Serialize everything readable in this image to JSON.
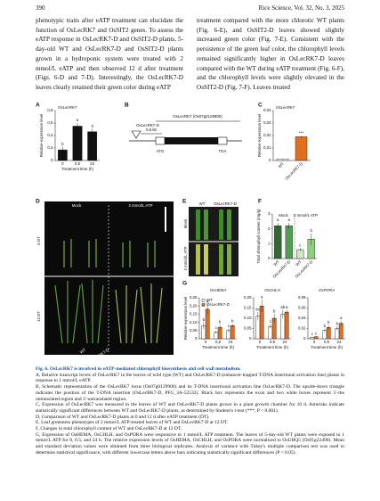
{
  "header": {
    "page": "390",
    "journal": "Rice Science, Vol. 32, No. 3, 2025"
  },
  "body": {
    "left": "phenotypic traits after eATP treatment can elucidate the function of OsLecRK7 and OsSIT2 genes. To assess the eATP response in OsLecRK7-D and OsSIT2-D plants, 5-day-old WT and OsLecRK7-D and OsSIT2-D plants grown in a hydroponic system were treated with 2 mmol/L eATP and then observed 12 d after treatment (Figs. 6-D and 7-D). Interestingly, the OsLecRK7-D leaves clearly retained their green color during eATP",
    "right": "treatment compared with the more chlorotic WT plants (Fig. 6-E), and OsSIT2-D leaves showed slightly increased green color (Fig. 7-E). Consistent with the persistence of the green leaf color, the chlorophyll levels remained significantly higher in OsLecRK7-D leaves compared with the WT during eATP treatment (Fig. 6-F), and the chlorophyll levels were slightly elevated in the OsSIT2-D (Fig. 7-F). Leaves treated"
  },
  "figure": {
    "a": {
      "label": "A",
      "type": "bar",
      "title": "OsLecRK7",
      "ylabel": "Relative expression level",
      "xlabel": "Treatment time (h)",
      "categories": [
        "0",
        "0,5",
        "24"
      ],
      "ylim": [
        0,
        0.8
      ],
      "yticks": [
        0,
        {
          "value": 0.2,
          "label": "0,2"
        },
        {
          "value": 0.4,
          "label": "0,4"
        },
        {
          "value": 0.6,
          "label": "0,6"
        },
        {
          "value": 0.8,
          "label": "0,8"
        }
      ],
      "series": [
        {
          "color": "#111111",
          "values": [
            0.17,
            0.55,
            0.46
          ],
          "errors": [
            0.05,
            0.05,
            0.05
          ],
          "letters": [
            "b",
            "a",
            "a"
          ]
        }
      ]
    },
    "b": {
      "label": "B",
      "gene": "OsLecRK7 (Os07g0129900)",
      "line": "OsLecRK7-D",
      "distance": "0,6 kb",
      "start": "ATG",
      "stop": "TGA"
    },
    "c": {
      "label": "C",
      "type": "bar",
      "title": "OsLecRK7",
      "ylabel": "Relative expression level",
      "categories": [
        "WT",
        "OsLecRK7-D"
      ],
      "ylim": [
        0,
        0.04
      ],
      "yticks": [
        0,
        {
          "value": 0.01,
          "label": "0,01"
        },
        {
          "value": 0.02,
          "label": "0,02"
        },
        {
          "value": 0.03,
          "label": "0,03"
        },
        {
          "value": 0.04,
          "label": "0,04"
        }
      ],
      "series": [
        {
          "colors": [
            "#ffffff",
            "#e07020"
          ],
          "values": [
            0.0012,
            0.019
          ],
          "errors": [
            0.0003,
            0.0007
          ]
        }
      ],
      "annotation": "***"
    },
    "d": {
      "label": "D",
      "conditions": [
        "Mock",
        "2 mmol/L ATP"
      ],
      "times": [
        "0 DT",
        "12 DT"
      ],
      "genotypes": [
        "WT",
        "OsLecRK7-D"
      ]
    },
    "e": {
      "label": "E",
      "genotypes": [
        "WT",
        "OsLecRK7-D"
      ],
      "conditions": [
        "Mock",
        "2 mmol/L ATP"
      ]
    },
    "f": {
      "label": "F",
      "type": "bar",
      "ylabel": "Total chlorophyll content (mg/g)",
      "groups": [
        "Mock",
        "2 mmol/L ATP"
      ],
      "categories": [
        "WT",
        "OsLecRK7-D",
        "WT",
        "OsLecRK7-D"
      ],
      "ylim": [
        0,
        3
      ],
      "yticks": [
        0,
        1,
        2,
        3
      ],
      "series": [
        {
          "colors": [
            "#2e6b2e",
            "#4fa04f",
            "#cfe8c0",
            "#8fd07f"
          ],
          "values": [
            2.2,
            2.2,
            0.6,
            1.3
          ],
          "errors": [
            0.2,
            0.2,
            0.1,
            0.4
          ],
          "letters": [
            "a",
            "a",
            "c",
            "b"
          ]
        }
      ]
    },
    "g": {
      "label": "G",
      "charts": [
        {
          "type": "bar",
          "title": "OsHEMA",
          "ylabel": "Relative expression level",
          "xlabel": "Treatment time (h)",
          "categories": [
            "0",
            "0,5",
            "24"
          ],
          "ylim": [
            0,
            0.25
          ],
          "yticks": [
            0,
            {
              "value": 0.05,
              "label": "0,05"
            },
            {
              "value": 0.1,
              "label": "0,10"
            },
            {
              "value": 0.15,
              "label": "0,15"
            },
            {
              "value": 0.2,
              "label": "0,20"
            },
            {
              "value": 0.25,
              "label": "0,25"
            }
          ],
          "series": [
            {
              "name": "WT",
              "color": "#ffffff",
              "values": [
                0.08,
                0.04,
                0.05
              ],
              "errors": [
                0.02,
                0.01,
                0.01
              ],
              "letters": [
                "b",
                "c",
                "c"
              ]
            },
            {
              "name": "OsLecRK7-D",
              "color": "#e07020",
              "values": [
                0.18,
                0.07,
                0.08
              ],
              "errors": [
                0.03,
                0.015,
                0.01
              ],
              "letters": [
                "a",
                "b",
                "b"
              ]
            }
          ]
        },
        {
          "type": "bar",
          "title": "OsCHLH",
          "xlabel": "Treatment time (h)",
          "categories": [
            "0",
            "0,5",
            "24"
          ],
          "ylim": [
            0,
            0.2
          ],
          "yticks": [
            0,
            {
              "value": 0.05,
              "label": "0,05"
            },
            {
              "value": 0.1,
              "label": "0,10"
            },
            {
              "value": 0.15,
              "label": "0,15"
            },
            {
              "value": 0.2,
              "label": "0,20"
            }
          ],
          "series": [
            {
              "color": "#ffffff",
              "values": [
                0.11,
                0.06,
                0.12
              ],
              "errors": [
                0.02,
                0.01,
                0.02
              ],
              "letters": [
                "bc",
                "c",
                "ab"
              ]
            },
            {
              "color": "#e07020",
              "values": [
                0.16,
                0.1,
                0.13
              ],
              "errors": [
                0.03,
                0.02,
                0.01
              ],
              "letters": [
                "a",
                "b",
                "a"
              ]
            }
          ]
        },
        {
          "type": "bar",
          "title": "OsPORA",
          "xlabel": "Treatment time (h)",
          "categories": [
            "0",
            "0,5",
            "24"
          ],
          "ylim": [
            0,
            0.08
          ],
          "yticks": [
            0,
            {
              "value": 0.02,
              "label": "0,02"
            },
            {
              "value": 0.04,
              "label": "0,04"
            },
            {
              "value": 0.06,
              "label": "0,06"
            },
            {
              "value": 0.08,
              "label": "0,08"
            }
          ],
          "series": [
            {
              "color": "#ffffff",
              "values": [
                0.003,
                0.016,
                0.02
              ],
              "errors": [
                0.001,
                0.003,
                0.004
              ],
              "letters": [
                "c",
                "b",
                "b"
              ]
            },
            {
              "color": "#e07020",
              "values": [
                0.004,
                0.022,
                0.03
              ],
              "errors": [
                0.001,
                0.004,
                0.005
              ],
              "letters": [
                "c",
                "b",
                "a"
              ]
            }
          ]
        }
      ]
    }
  },
  "caption": {
    "title": "Fig. 6. OsLecRK7 is involved in eATP-mediated chlorophyll biosynthesis and cell wall metabolism.",
    "items": [
      "A, Relative transcript levels of OsLecRK7 in the leaves of wild type (WT) and OsLecRK7-D (enhancer-trapped T-DNA insertional activation line) plants in response to 1 mmol/L eATP.",
      "B, Schematic representation of the OsLecRK7 locus (Os07g0129900) and its T-DNA insertional activation line OsLecRK7-D. The upside-down triangle indicates the position of the T-DNA insertion (OsLecRK7-D, PFG_3A-52532). Black box represents the exon and two white boxes represent 5′-the untranslated region and 3′-untranslated region.",
      "C, Expression of OsLecRK7 was measured in the leaves of WT and OsLecRK7-D plants grown in a plant growth chamber for 10 d. Asterisks indicate statistically significant differences between WT and OsLecRK7-D plants, as determined by Student's t-test (***, P < 0.001).",
      "D, Comparison of WT and OsLecRK7-D plants at 0 and 12 d after eATP treatment (DT).",
      "E, Leaf greenness phenotypes of 2 mmol/L ATP-treated leaves of WT and OsLecRK7-D at 12 DT.",
      "F, Changes in total chlorophyll content of WT and OsLecRK7-D at 12 DT.",
      "G, Expression of OsHEMA, OsCHLH, and OsPORA were responsive to 1 mmol/L ATP treatment. The leaves of 5-day-old WT plants were exposed to 1 mmol/L ATP for 0, 0.5, and 24 h. The relative expression levels of OsHEMA, OsCHLH, and OsPORA were normalized to OsUBQ5 (Os01g22490). Mean and standard deviation values were obtained from three biological replicates. Analysis of variance with Tukey's multiple comparison test was used to determine statistical significance, with different lowercase letters above bars indicating statistically significant differences (P < 0.05)."
    ]
  }
}
